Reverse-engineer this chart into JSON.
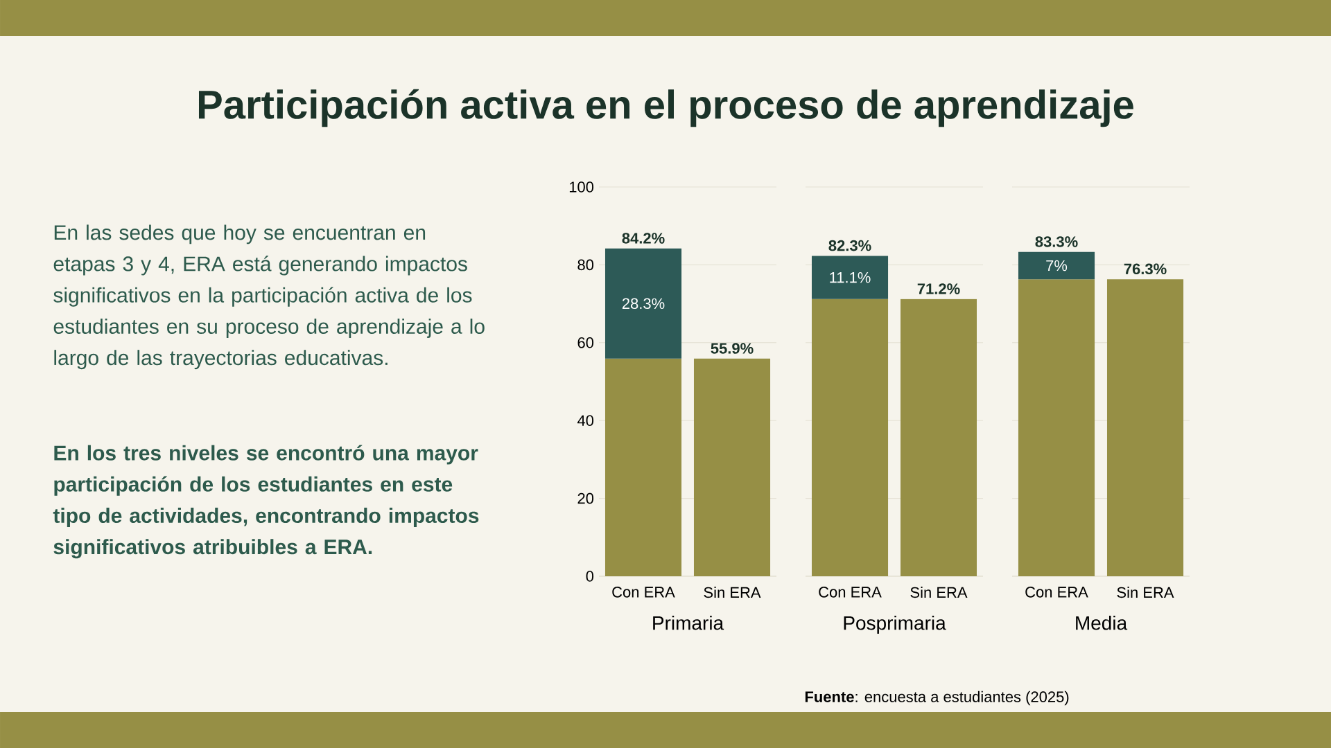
{
  "chart_data": [
    {
      "type": "bar",
      "stacked": true,
      "title": "Participación activa en el proceso de aprendizaje",
      "annotations": [
        "En las sedes que hoy se encuentran en etapas 3 y 4, ERA está generando impactos significativos en la participación activa de los estudiantes en su proceso de aprendizaje a lo largo de las trayectorias educativas.",
        "En los tres niveles se encontró una mayor participación de los estudiantes en este tipo de actividades, encontrando impactos significativos atribuibles a ERA.",
        "**Fuente**: encuesta a estudiantes (2025)"
      ],
      "categories": [
        "Con ERA",
        "Sin ERA"
      ],
      "xlabel": "Primaria",
      "ylim": [
        0,
        100
      ],
      "yticks": [
        0,
        20,
        40,
        60,
        80,
        100
      ],
      "grid": "y",
      "series": [
        {
          "color": "#968f45",
          "values": [
            55.9,
            55.9
          ]
        },
        {
          "color": "#2d5a57",
          "values": [
            28.3,
            null
          ],
          "value_labels": [
            "28.3%",
            null
          ]
        }
      ],
      "totals": [
        "84.2%",
        "55.9%"
      ]
    },
    {
      "type": "bar",
      "stacked": true,
      "categories": [
        "Con ERA",
        "Sin ERA"
      ],
      "xlabel": "Posprimaria",
      "ylim": [
        0,
        100
      ],
      "yticks": [
        0,
        20,
        40,
        60,
        80,
        100
      ],
      "grid": "y",
      "tick_labels": "x",
      "series": [
        {
          "color": "#968f45",
          "values": [
            71.2,
            71.2
          ]
        },
        {
          "color": "#2d5a57",
          "values": [
            11.1,
            null
          ],
          "value_labels": [
            "11.1%",
            null
          ]
        }
      ],
      "totals": [
        "82.3%",
        "71.2%"
      ]
    },
    {
      "type": "bar",
      "stacked": true,
      "categories": [
        "Con ERA",
        "Sin ERA"
      ],
      "xlabel": "Media",
      "ylim": [
        0,
        100
      ],
      "yticks": [
        0,
        20,
        40,
        60,
        80,
        100
      ],
      "grid": "y",
      "tick_labels": "x",
      "series": [
        {
          "color": "#968f45",
          "values": [
            76.3,
            76.3
          ]
        },
        {
          "color": "#2d5a57",
          "values": [
            7,
            null
          ],
          "value_labels": [
            "7%",
            null
          ]
        }
      ],
      "totals": [
        "83.3%",
        "76.3%"
      ]
    }
  ]
}
